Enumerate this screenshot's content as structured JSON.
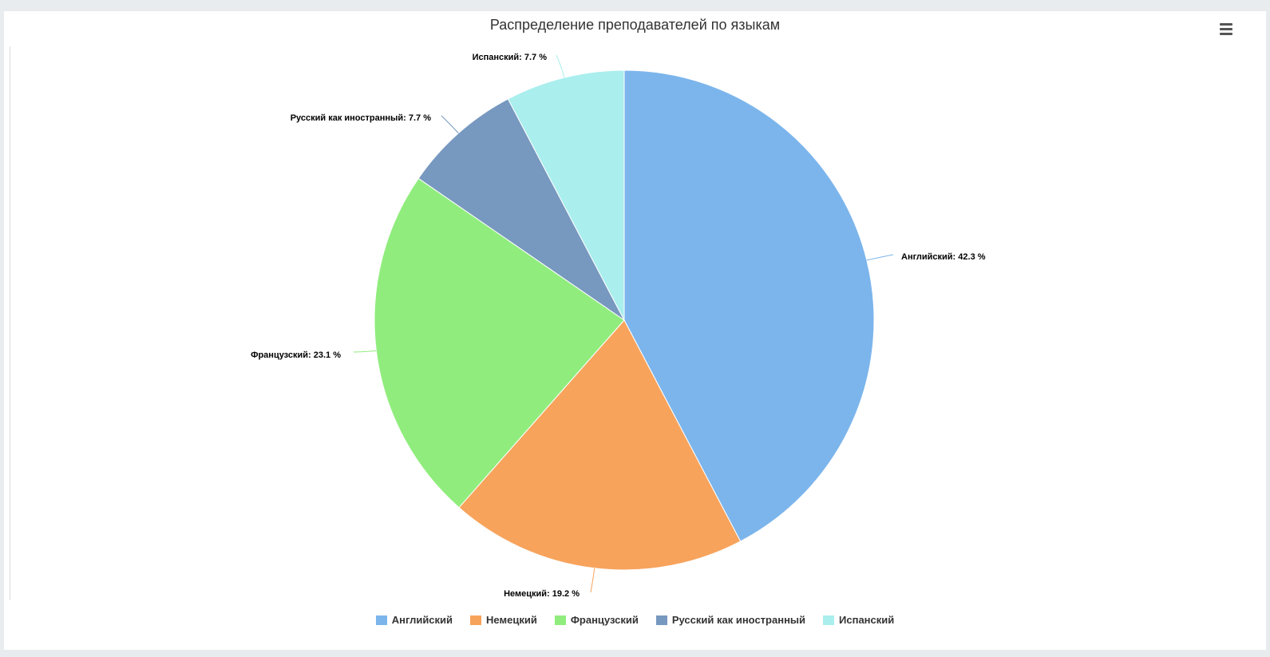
{
  "chart_data": {
    "type": "pie",
    "title": "Распределение преподавателей по языкам",
    "slices": [
      {
        "name": "Английский",
        "value": 42.3,
        "label": "Английский: 42.3 %",
        "color": "#7cb5ec"
      },
      {
        "name": "Немецкий",
        "value": 19.2,
        "label": "Немецкий: 19.2 %",
        "color": "#f7a35c"
      },
      {
        "name": "Французский",
        "value": 23.1,
        "label": "Французский: 23.1 %",
        "color": "#90ed7d"
      },
      {
        "name": "Русский как иностранный",
        "value": 7.7,
        "label": "Русский как иностранный: 7.7 %",
        "color": "#7798bf"
      },
      {
        "name": "Испанский",
        "value": 7.7,
        "label": "Испанский: 7.7 %",
        "color": "#aaeeee"
      }
    ],
    "legend_position": "bottom-center"
  },
  "toolbar": {
    "menu_icon": "hamburger-menu-icon"
  }
}
